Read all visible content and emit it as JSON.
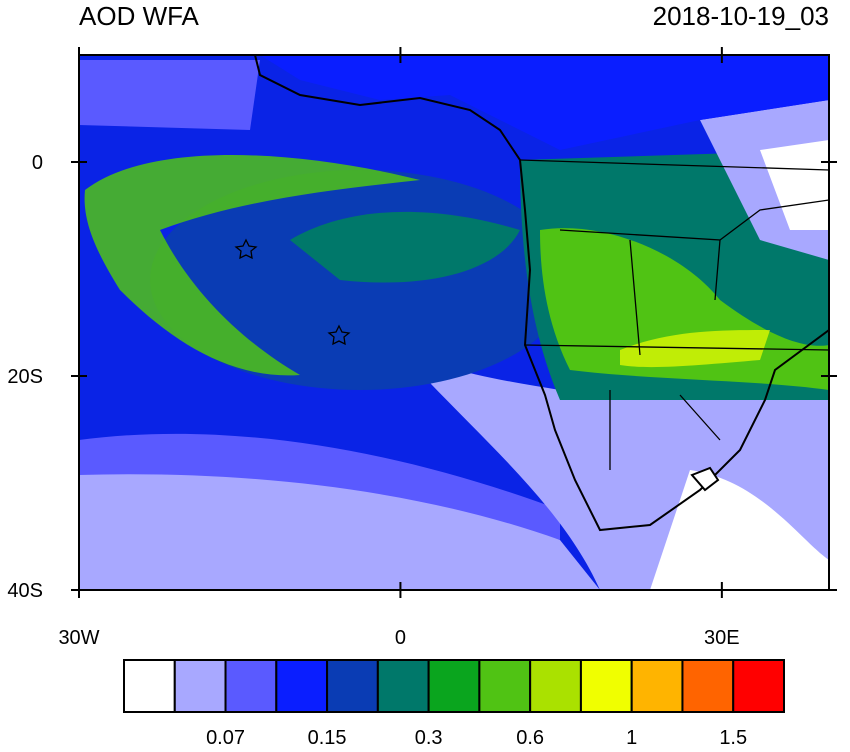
{
  "title": "AOD WFA",
  "date": "2018-10-19_03",
  "map": {
    "lon_range": [
      -30,
      40
    ],
    "lat_range": [
      -40,
      10
    ],
    "lat_ticks": [
      {
        "value": 0,
        "label": "0"
      },
      {
        "value": -20,
        "label": "20S"
      },
      {
        "value": -40,
        "label": "40S"
      }
    ],
    "lon_ticks": [
      {
        "value": -30,
        "label": "30W"
      },
      {
        "value": 0,
        "label": "0"
      },
      {
        "value": 30,
        "label": "30E"
      }
    ]
  },
  "colorbar": {
    "colors": [
      "#ffffff",
      "#a8a8ff",
      "#5a5aff",
      "#0a1eff",
      "#0a3cb4",
      "#00786a",
      "#0aa51e",
      "#50c314",
      "#aae100",
      "#f0ff00",
      "#ffb400",
      "#ff6400",
      "#ff0000"
    ],
    "labels": [
      "0.07",
      "0.15",
      "0.3",
      "0.6",
      "1",
      "1.5"
    ]
  }
}
